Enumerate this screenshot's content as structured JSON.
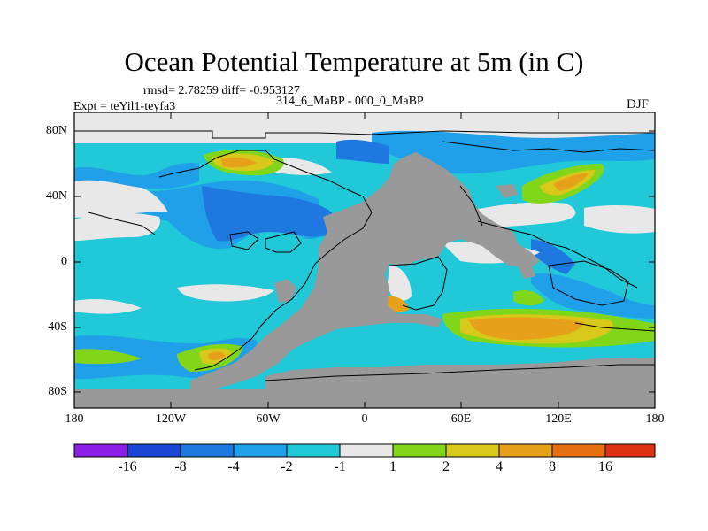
{
  "title": "Ocean Potential Temperature at 5m (in C)",
  "stats": "rmsd= 2.78259 diff= -0.953127",
  "periods": "314_6_MaBP - 000_0_MaBP",
  "experiment": "Expt = teYil1-teyfa3",
  "season": "DJF",
  "lat_labels": [
    "80N",
    "40N",
    "0",
    "40S",
    "80S"
  ],
  "lon_labels": [
    "180",
    "120W",
    "60W",
    "0",
    "60E",
    "120E",
    "180"
  ],
  "colorbar": {
    "labels": [
      "-16",
      "-8",
      "-4",
      "-2",
      "-1",
      "1",
      "2",
      "4",
      "8",
      "16"
    ],
    "colors": [
      "#8b1fe6",
      "#1a46d6",
      "#1f78e0",
      "#1fa0e8",
      "#20c8d8",
      "#e8e8e8",
      "#82d61a",
      "#d8c81a",
      "#e6a01a",
      "#e6700f",
      "#e03012"
    ]
  },
  "map_colors": {
    "land": "#999999",
    "coast": "#000000"
  }
}
